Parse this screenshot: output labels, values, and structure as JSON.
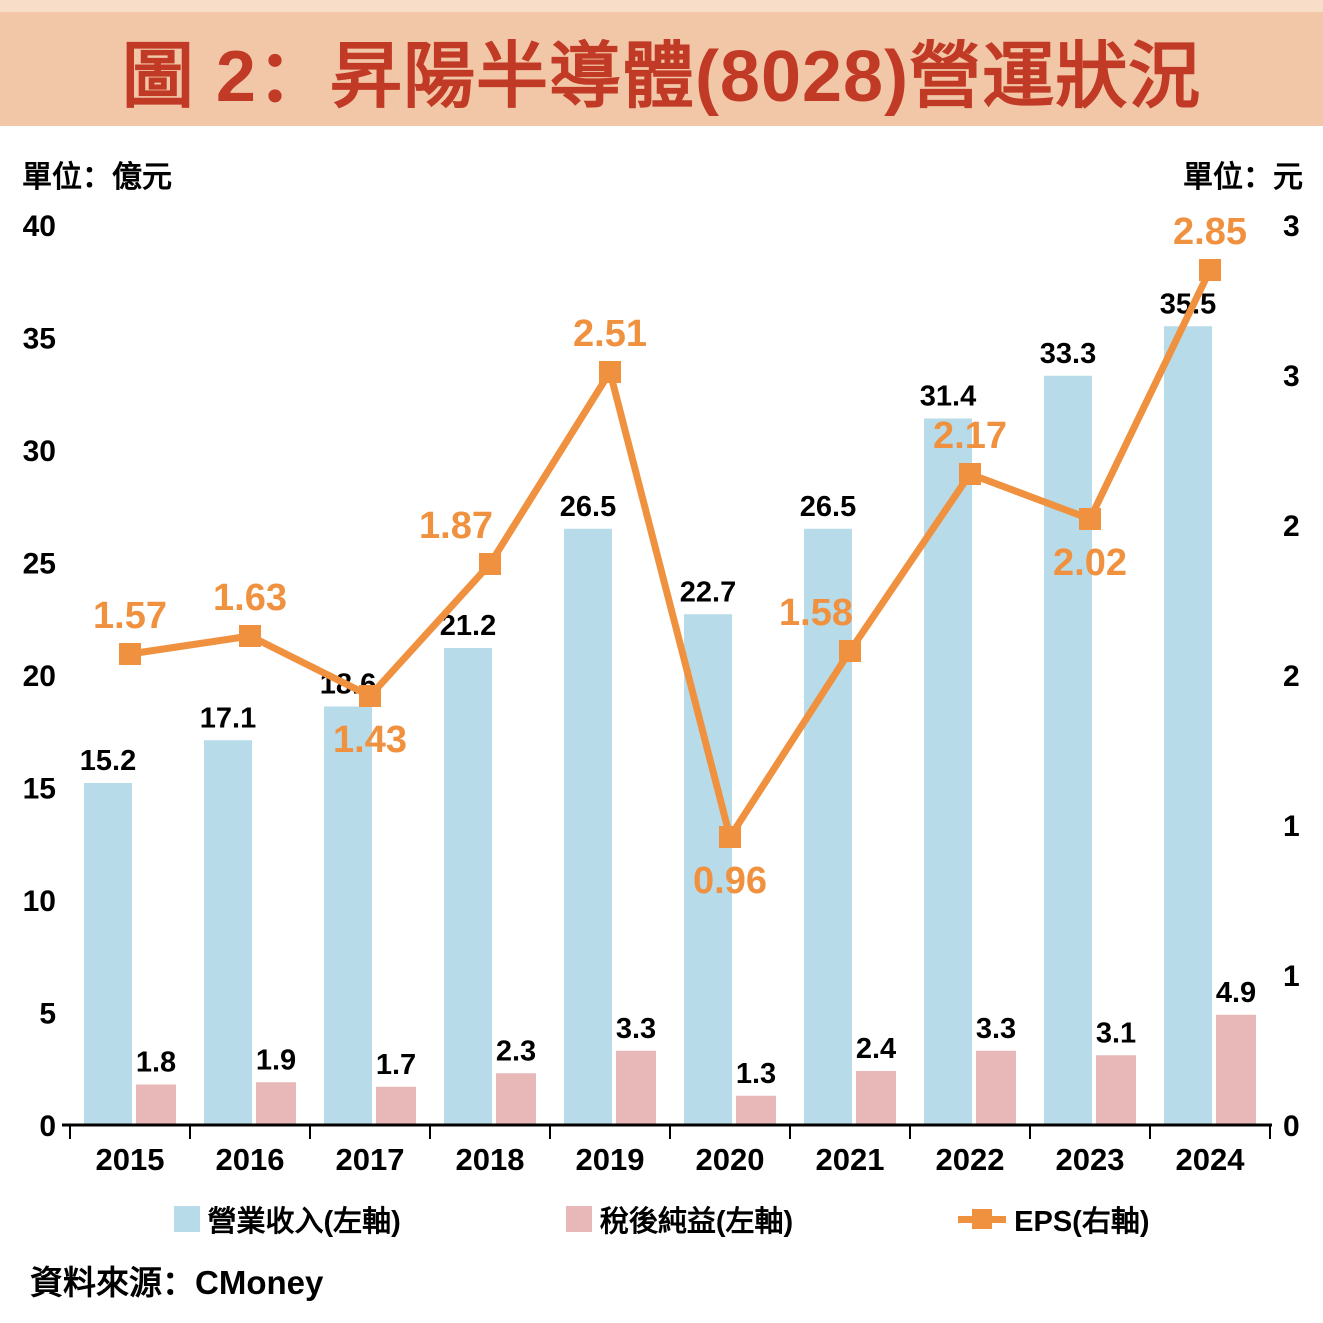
{
  "title": "圖 2：昇陽半導體(8028)營運狀況",
  "left_unit": "單位：億元",
  "right_unit": "單位：元",
  "source": "資料來源：CMoney",
  "colors": {
    "banner_bg": "#f2c7a8",
    "title_text": "#c13a26",
    "revenue_bar": "#b7dbe8",
    "net_income_bar": "#e8b7b7",
    "eps_line": "#f0913f",
    "axis_text": "#000000"
  },
  "legend": [
    {
      "label": "營業收入(左軸)"
    },
    {
      "label": "稅後純益(左軸)"
    },
    {
      "label": "EPS(右軸)"
    }
  ],
  "chart_data": {
    "type": "bar+line",
    "categories": [
      "2015",
      "2016",
      "2017",
      "2018",
      "2019",
      "2020",
      "2021",
      "2022",
      "2023",
      "2024"
    ],
    "series": [
      {
        "name": "營業收入(左軸)",
        "type": "bar",
        "axis": "left",
        "color": "#b7dbe8",
        "values": [
          15.2,
          17.1,
          18.6,
          21.2,
          26.5,
          22.7,
          26.5,
          31.4,
          33.3,
          35.5
        ]
      },
      {
        "name": "稅後純益(左軸)",
        "type": "bar",
        "axis": "left",
        "color": "#e8b7b7",
        "values": [
          1.8,
          1.9,
          1.7,
          2.3,
          3.3,
          1.3,
          2.4,
          3.3,
          3.1,
          4.9
        ]
      },
      {
        "name": "EPS(右軸)",
        "type": "line",
        "axis": "right",
        "color": "#f0913f",
        "values": [
          1.57,
          1.63,
          1.43,
          1.87,
          2.51,
          0.96,
          1.58,
          2.17,
          2.02,
          2.85
        ],
        "label_position": [
          "above",
          "above",
          "below",
          "above",
          "above",
          "below",
          "above",
          "above",
          "below",
          "above"
        ],
        "label_dx": [
          0,
          0,
          0,
          -34,
          0,
          0,
          -34,
          0,
          0,
          0
        ]
      }
    ],
    "left_axis": {
      "min": 0,
      "max": 40,
      "step": 5,
      "tick_labels": [
        "0",
        "5",
        "10",
        "15",
        "20",
        "25",
        "30",
        "35",
        "40"
      ]
    },
    "right_axis": {
      "min": 0,
      "max": 3,
      "step": 0.5,
      "tick_labels": [
        "0",
        "1",
        "1",
        "2",
        "2",
        "3",
        "3"
      ]
    },
    "grid": false,
    "legend_position": "bottom"
  }
}
